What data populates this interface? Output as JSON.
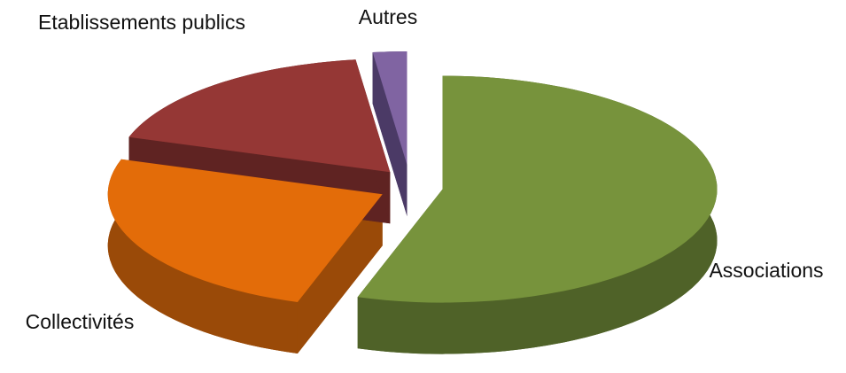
{
  "chart_data": {
    "type": "pie3d",
    "categories": [
      "Associations",
      "Collectivités",
      "Etablissements publics",
      "Autres"
    ],
    "values": [
      55,
      25,
      18,
      2
    ],
    "colors": [
      "#77933c",
      "#e36c09",
      "#953735",
      "#8064a2"
    ],
    "side_colors": [
      "#4f6228",
      "#9a4a08",
      "#5f2322",
      "#4b3a66"
    ]
  }
}
